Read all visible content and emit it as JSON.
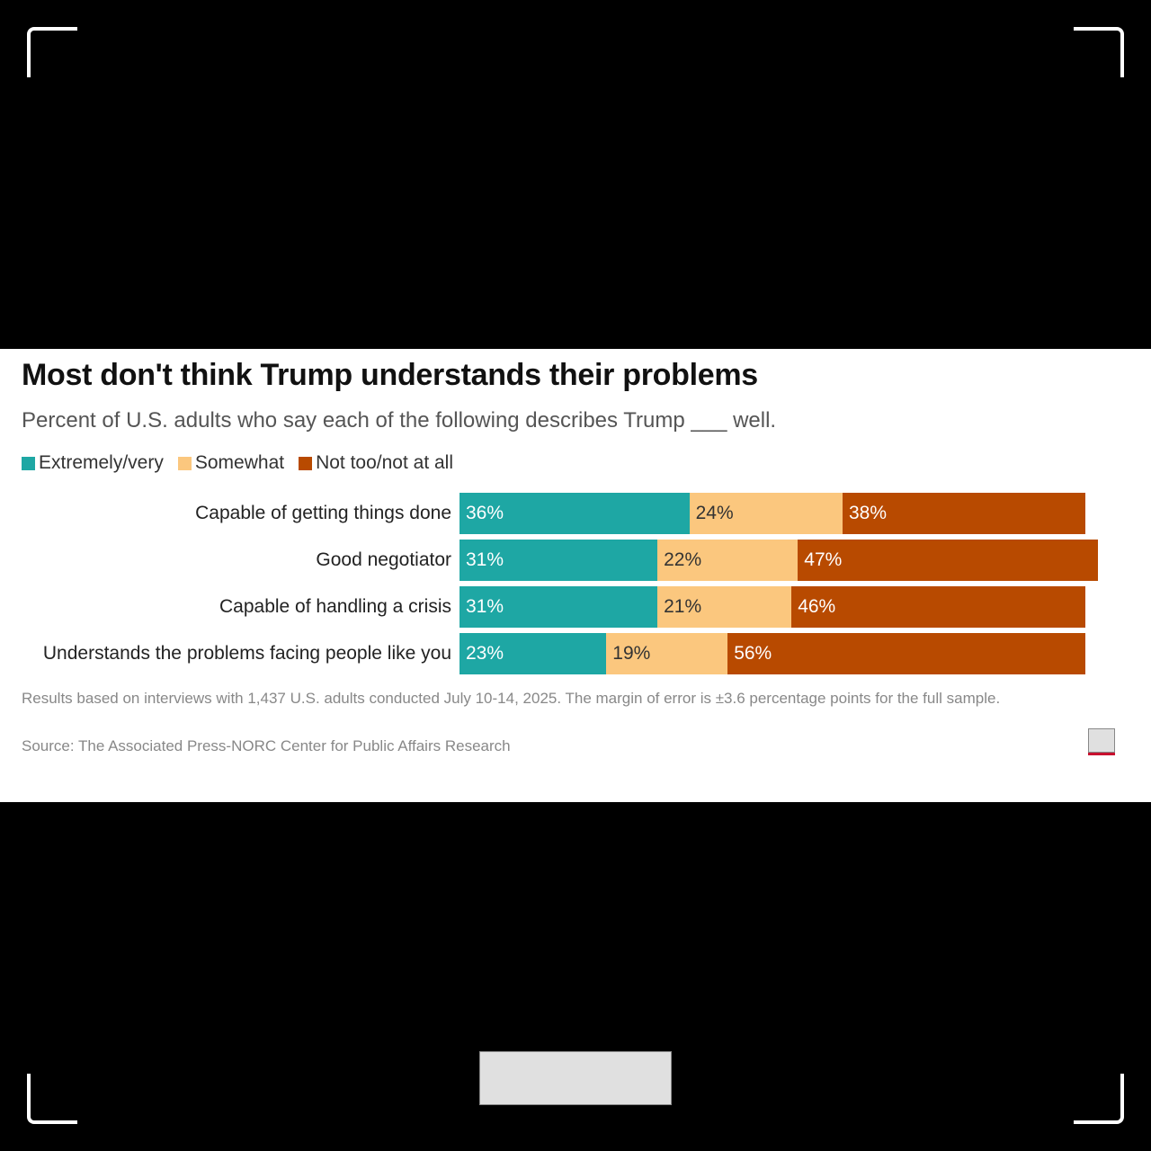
{
  "chart_data": {
    "type": "bar",
    "stacked": true,
    "orientation": "horizontal",
    "title": "Most don't think Trump understands their problems",
    "subtitle": "Percent of U.S. adults who say each of the following describes Trump ___ well.",
    "categories": [
      "Capable of getting things done",
      "Good negotiator",
      "Capable of handling a crisis",
      "Understands the problems facing people like you"
    ],
    "series": [
      {
        "name": "Extremely/very",
        "color": "#1ea7a4",
        "values": [
          36,
          31,
          31,
          23
        ]
      },
      {
        "name": "Somewhat",
        "color": "#fbc77e",
        "values": [
          24,
          22,
          21,
          19
        ]
      },
      {
        "name": "Not too/not at all",
        "color": "#b84a00",
        "values": [
          38,
          47,
          46,
          56
        ]
      }
    ],
    "xlim": [
      0,
      100
    ],
    "legend": "top-left",
    "note": "Results based on interviews with 1,437 U.S. adults conducted July 10-14, 2025. The margin of error is ±3.6 percentage points for the full sample.",
    "source": "Source: The Associated Press-NORC Center for Public Affairs Research"
  },
  "colors": {
    "page_background": "#000000",
    "panel_background": "#ffffff",
    "label_dark": "#333333",
    "label_light": "#ffffff"
  }
}
